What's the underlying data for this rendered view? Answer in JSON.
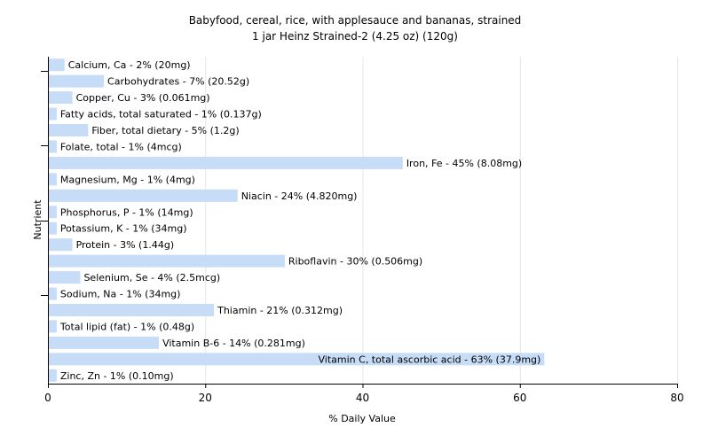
{
  "chart_data": {
    "type": "bar",
    "orientation": "horizontal",
    "title": "Babyfood, cereal, rice, with applesauce and bananas, strained",
    "subtitle": "1 jar Heinz Strained-2 (4.25 oz) (120g)",
    "xlabel": "% Daily Value",
    "ylabel": "Nutrient",
    "xlim": [
      0,
      80
    ],
    "xticks": [
      "0",
      "20",
      "40",
      "60",
      "80"
    ],
    "grid": true,
    "bar_color": "#c6dcf7",
    "categories": [
      "Calcium, Ca",
      "Carbohydrates",
      "Copper, Cu",
      "Fatty acids, total saturated",
      "Fiber, total dietary",
      "Folate, total",
      "Iron, Fe",
      "Magnesium, Mg",
      "Niacin",
      "Phosphorus, P",
      "Potassium, K",
      "Protein",
      "Riboflavin",
      "Selenium, Se",
      "Sodium, Na",
      "Thiamin",
      "Total lipid (fat)",
      "Vitamin B-6",
      "Vitamin C, total ascorbic acid",
      "Zinc, Zn"
    ],
    "values": [
      2,
      7,
      3,
      1,
      5,
      1,
      45,
      1,
      24,
      1,
      1,
      3,
      30,
      4,
      1,
      21,
      1,
      14,
      63,
      1
    ],
    "labels": [
      "Calcium, Ca - 2% (20mg)",
      "Carbohydrates - 7% (20.52g)",
      "Copper, Cu - 3% (0.061mg)",
      "Fatty acids, total saturated - 1% (0.137g)",
      "Fiber, total dietary - 5% (1.2g)",
      "Folate, total - 1% (4mcg)",
      "Iron, Fe - 45% (8.08mg)",
      "Magnesium, Mg - 1% (4mg)",
      "Niacin - 24% (4.820mg)",
      "Phosphorus, P - 1% (14mg)",
      "Potassium, K - 1% (34mg)",
      "Protein - 3% (1.44g)",
      "Riboflavin - 30% (0.506mg)",
      "Selenium, Se - 4% (2.5mcg)",
      "Sodium, Na - 1% (34mg)",
      "Thiamin - 21% (0.312mg)",
      "Total lipid (fat) - 1% (0.48g)",
      "Vitamin B-6 - 14% (0.281mg)",
      "Vitamin C, total ascorbic acid - 63% (37.9mg)",
      "Zinc, Zn - 1% (0.10mg)"
    ]
  }
}
